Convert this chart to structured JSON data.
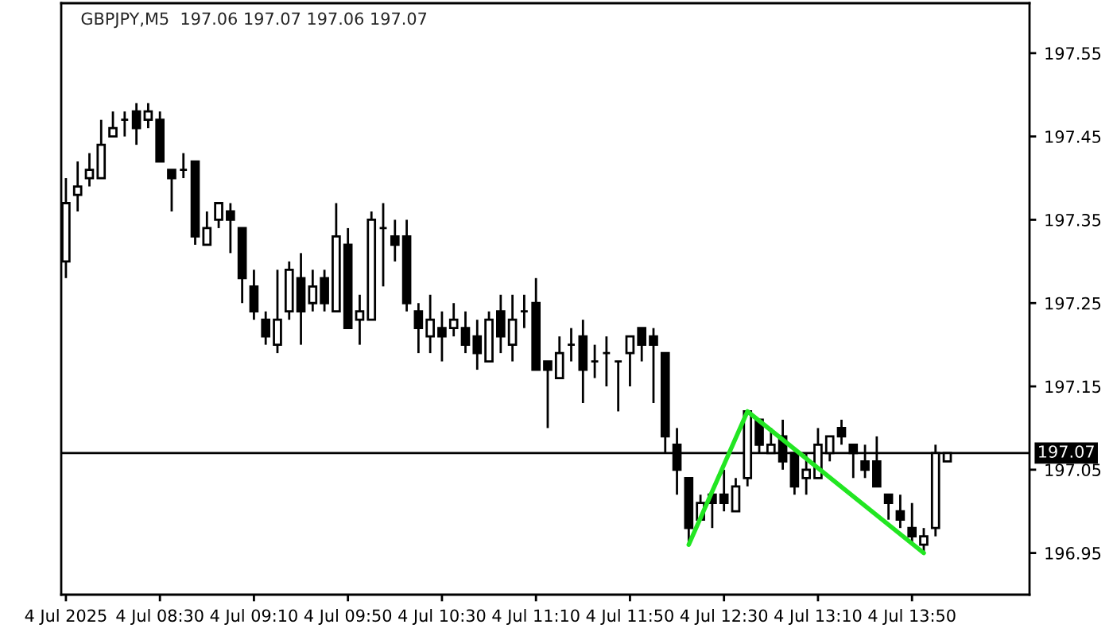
{
  "chart_data": {
    "type": "candlestick",
    "title": "GBPJPY,M5  197.06 197.07 197.06 197.07",
    "x": [
      "2025-07-04T07:50",
      "2025-07-04T07:55",
      "2025-07-04T08:00",
      "2025-07-04T08:05",
      "2025-07-04T08:10",
      "2025-07-04T08:15",
      "2025-07-04T08:20",
      "2025-07-04T08:25",
      "2025-07-04T08:30",
      "2025-07-04T08:35",
      "2025-07-04T08:40",
      "2025-07-04T08:45",
      "2025-07-04T08:50",
      "2025-07-04T08:55",
      "2025-07-04T09:00",
      "2025-07-04T09:05",
      "2025-07-04T09:10",
      "2025-07-04T09:15",
      "2025-07-04T09:20",
      "2025-07-04T09:25",
      "2025-07-04T09:30",
      "2025-07-04T09:35",
      "2025-07-04T09:40",
      "2025-07-04T09:45",
      "2025-07-04T09:50",
      "2025-07-04T09:55",
      "2025-07-04T10:00",
      "2025-07-04T10:05",
      "2025-07-04T10:10",
      "2025-07-04T10:15",
      "2025-07-04T10:20",
      "2025-07-04T10:25",
      "2025-07-04T10:30",
      "2025-07-04T10:35",
      "2025-07-04T10:40",
      "2025-07-04T10:45",
      "2025-07-04T10:50",
      "2025-07-04T10:55",
      "2025-07-04T11:00",
      "2025-07-04T11:05",
      "2025-07-04T11:10",
      "2025-07-04T11:15",
      "2025-07-04T11:20",
      "2025-07-04T11:25",
      "2025-07-04T11:30",
      "2025-07-04T11:35",
      "2025-07-04T11:40",
      "2025-07-04T11:45",
      "2025-07-04T11:50",
      "2025-07-04T11:55",
      "2025-07-04T12:00",
      "2025-07-04T12:05",
      "2025-07-04T12:10",
      "2025-07-04T12:15",
      "2025-07-04T12:20",
      "2025-07-04T12:25",
      "2025-07-04T12:30",
      "2025-07-04T12:35",
      "2025-07-04T12:40",
      "2025-07-04T12:45",
      "2025-07-04T12:50",
      "2025-07-04T12:55",
      "2025-07-04T13:00",
      "2025-07-04T13:05",
      "2025-07-04T13:10",
      "2025-07-04T13:15",
      "2025-07-04T13:20",
      "2025-07-04T13:25",
      "2025-07-04T13:30",
      "2025-07-04T13:35",
      "2025-07-04T13:40",
      "2025-07-04T13:45",
      "2025-07-04T13:50",
      "2025-07-04T13:55",
      "2025-07-04T14:00",
      "2025-07-04T14:05"
    ],
    "ohlc": [
      [
        197.3,
        197.4,
        197.28,
        197.37
      ],
      [
        197.38,
        197.42,
        197.36,
        197.39
      ],
      [
        197.4,
        197.43,
        197.39,
        197.41
      ],
      [
        197.4,
        197.47,
        197.4,
        197.44
      ],
      [
        197.45,
        197.48,
        197.45,
        197.46
      ],
      [
        197.47,
        197.48,
        197.45,
        197.47
      ],
      [
        197.48,
        197.49,
        197.44,
        197.46
      ],
      [
        197.47,
        197.49,
        197.46,
        197.48
      ],
      [
        197.47,
        197.48,
        197.42,
        197.42
      ],
      [
        197.41,
        197.41,
        197.36,
        197.4
      ],
      [
        197.41,
        197.43,
        197.4,
        197.41
      ],
      [
        197.42,
        197.42,
        197.32,
        197.33
      ],
      [
        197.32,
        197.36,
        197.32,
        197.34
      ],
      [
        197.35,
        197.37,
        197.34,
        197.37
      ],
      [
        197.36,
        197.37,
        197.31,
        197.35
      ],
      [
        197.34,
        197.34,
        197.25,
        197.28
      ],
      [
        197.27,
        197.29,
        197.23,
        197.24
      ],
      [
        197.23,
        197.24,
        197.2,
        197.21
      ],
      [
        197.2,
        197.29,
        197.19,
        197.23
      ],
      [
        197.24,
        197.3,
        197.23,
        197.29
      ],
      [
        197.28,
        197.31,
        197.2,
        197.24
      ],
      [
        197.25,
        197.29,
        197.24,
        197.27
      ],
      [
        197.28,
        197.29,
        197.24,
        197.25
      ],
      [
        197.24,
        197.37,
        197.24,
        197.33
      ],
      [
        197.32,
        197.34,
        197.22,
        197.22
      ],
      [
        197.23,
        197.26,
        197.2,
        197.24
      ],
      [
        197.23,
        197.36,
        197.23,
        197.35
      ],
      [
        197.34,
        197.37,
        197.27,
        197.34
      ],
      [
        197.33,
        197.35,
        197.3,
        197.32
      ],
      [
        197.33,
        197.35,
        197.24,
        197.25
      ],
      [
        197.24,
        197.25,
        197.19,
        197.22
      ],
      [
        197.21,
        197.26,
        197.19,
        197.23
      ],
      [
        197.22,
        197.24,
        197.18,
        197.21
      ],
      [
        197.22,
        197.25,
        197.21,
        197.23
      ],
      [
        197.22,
        197.24,
        197.19,
        197.2
      ],
      [
        197.21,
        197.23,
        197.17,
        197.19
      ],
      [
        197.18,
        197.24,
        197.18,
        197.23
      ],
      [
        197.24,
        197.26,
        197.19,
        197.21
      ],
      [
        197.2,
        197.26,
        197.18,
        197.23
      ],
      [
        197.24,
        197.26,
        197.22,
        197.24
      ],
      [
        197.25,
        197.28,
        197.17,
        197.17
      ],
      [
        197.18,
        197.18,
        197.1,
        197.17
      ],
      [
        197.16,
        197.21,
        197.16,
        197.19
      ],
      [
        197.2,
        197.22,
        197.18,
        197.2
      ],
      [
        197.21,
        197.23,
        197.13,
        197.17
      ],
      [
        197.18,
        197.2,
        197.16,
        197.18
      ],
      [
        197.19,
        197.21,
        197.15,
        197.19
      ],
      [
        197.18,
        197.18,
        197.12,
        197.18
      ],
      [
        197.19,
        197.21,
        197.15,
        197.21
      ],
      [
        197.22,
        197.22,
        197.18,
        197.2
      ],
      [
        197.21,
        197.22,
        197.13,
        197.2
      ],
      [
        197.19,
        197.19,
        197.07,
        197.09
      ],
      [
        197.08,
        197.1,
        197.02,
        197.05
      ],
      [
        197.04,
        197.04,
        196.96,
        196.98
      ],
      [
        196.99,
        197.02,
        196.99,
        197.01
      ],
      [
        197.02,
        197.02,
        196.98,
        197.01
      ],
      [
        197.02,
        197.05,
        197.0,
        197.01
      ],
      [
        197.0,
        197.04,
        197.0,
        197.03
      ],
      [
        197.04,
        197.12,
        197.03,
        197.12
      ],
      [
        197.11,
        197.11,
        197.07,
        197.08
      ],
      [
        197.07,
        197.1,
        197.07,
        197.08
      ],
      [
        197.09,
        197.11,
        197.05,
        197.06
      ],
      [
        197.07,
        197.07,
        197.02,
        197.03
      ],
      [
        197.04,
        197.07,
        197.02,
        197.05
      ],
      [
        197.04,
        197.1,
        197.04,
        197.08
      ],
      [
        197.07,
        197.09,
        197.06,
        197.09
      ],
      [
        197.1,
        197.11,
        197.08,
        197.09
      ],
      [
        197.08,
        197.08,
        197.04,
        197.07
      ],
      [
        197.06,
        197.08,
        197.04,
        197.05
      ],
      [
        197.06,
        197.09,
        197.03,
        197.03
      ],
      [
        197.02,
        197.02,
        196.99,
        197.01
      ],
      [
        197.0,
        197.02,
        196.98,
        196.99
      ],
      [
        196.98,
        197.01,
        196.96,
        196.97
      ],
      [
        196.96,
        196.98,
        196.95,
        196.97
      ],
      [
        196.98,
        197.08,
        196.97,
        197.07
      ],
      [
        197.06,
        197.07,
        197.06,
        197.07
      ]
    ],
    "series": [
      {
        "type": "line",
        "color": "#22e622",
        "x": [
          "2025-07-04T12:15",
          "2025-07-04T12:40",
          "2025-07-04T13:55"
        ],
        "values": [
          196.96,
          197.12,
          196.95
        ]
      }
    ],
    "ref_lines": [
      {
        "axis": "y",
        "value": 197.07,
        "label": "197.07",
        "color": "#000000"
      }
    ],
    "xlim": [
      "2025-07-04T07:48",
      "2025-07-04T14:40"
    ],
    "xticks": [
      {
        "value": "2025-07-04T07:50",
        "label": "4 Jul 2025"
      },
      {
        "value": "2025-07-04T08:30",
        "label": "4 Jul 08:30"
      },
      {
        "value": "2025-07-04T09:10",
        "label": "4 Jul 09:10"
      },
      {
        "value": "2025-07-04T09:50",
        "label": "4 Jul 09:50"
      },
      {
        "value": "2025-07-04T10:30",
        "label": "4 Jul 10:30"
      },
      {
        "value": "2025-07-04T11:10",
        "label": "4 Jul 11:10"
      },
      {
        "value": "2025-07-04T11:50",
        "label": "4 Jul 11:50"
      },
      {
        "value": "2025-07-04T12:30",
        "label": "4 Jul 12:30"
      },
      {
        "value": "2025-07-04T13:10",
        "label": "4 Jul 13:10"
      },
      {
        "value": "2025-07-04T13:50",
        "label": "4 Jul 13:50"
      }
    ],
    "ylim": [
      196.9,
      197.61
    ],
    "yticks": [
      196.95,
      197.05,
      197.15,
      197.25,
      197.35,
      197.45,
      197.55
    ],
    "grid": false,
    "legend": false
  }
}
